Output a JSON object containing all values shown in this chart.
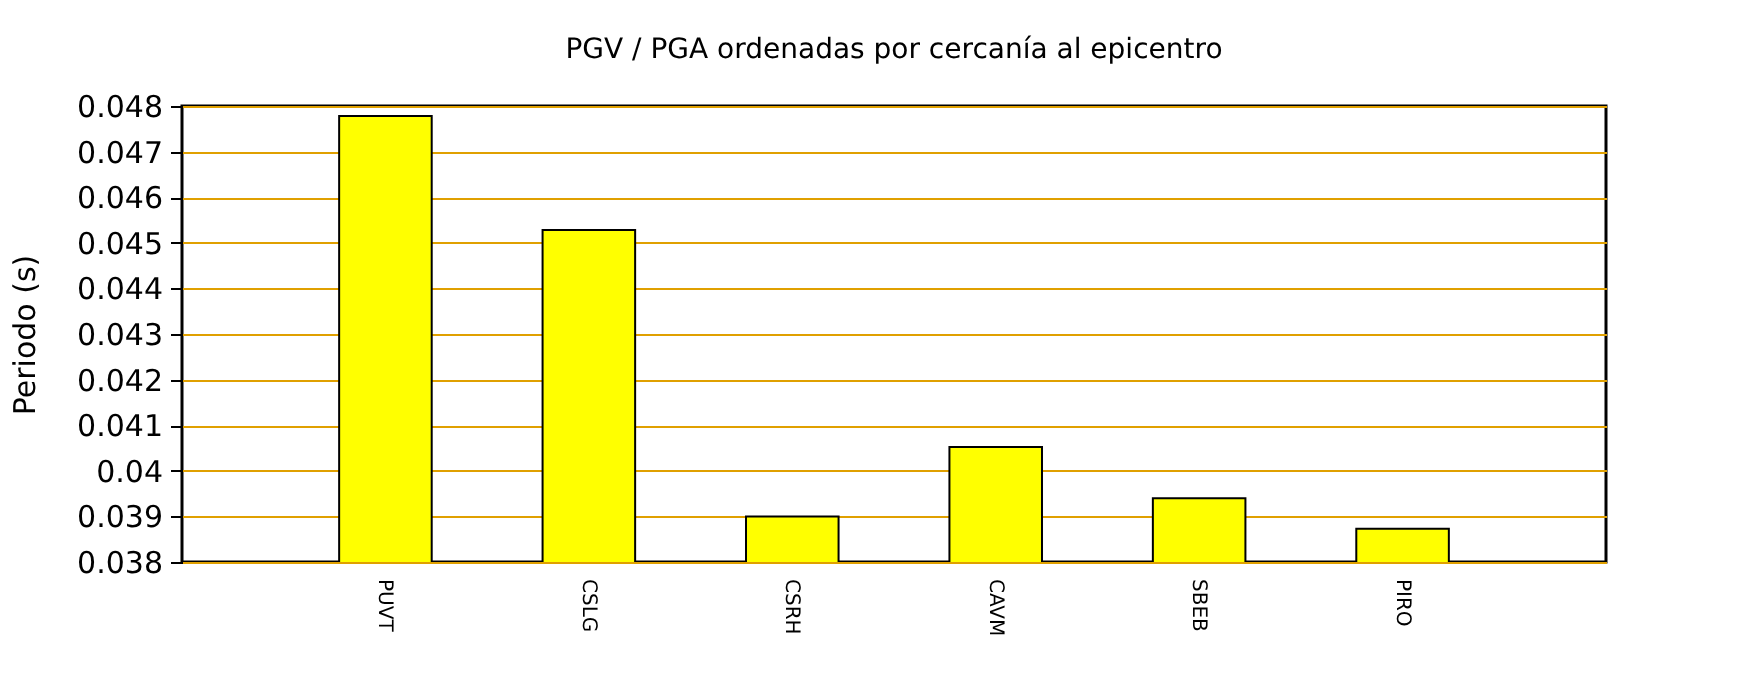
{
  "chart_data": {
    "type": "bar",
    "title": "PGV / PGA ordenadas por cercanía al epicentro",
    "ylabel": "Periodo (s)",
    "categories": [
      "PUVT",
      "CSLG",
      "CSRH",
      "CAVM",
      "SBEB",
      "PIRO"
    ],
    "values": [
      0.04778,
      0.04528,
      0.039,
      0.04052,
      0.0394,
      0.03873
    ],
    "color": "#ffff00",
    "ylim": [
      0.038,
      0.048
    ],
    "yticks": [
      0.038,
      0.039,
      {
        "value": 0.04,
        "label": "0.04"
      },
      0.041,
      0.042,
      0.043,
      0.044,
      0.045,
      0.046,
      0.047,
      0.048
    ],
    "grid": "y"
  }
}
